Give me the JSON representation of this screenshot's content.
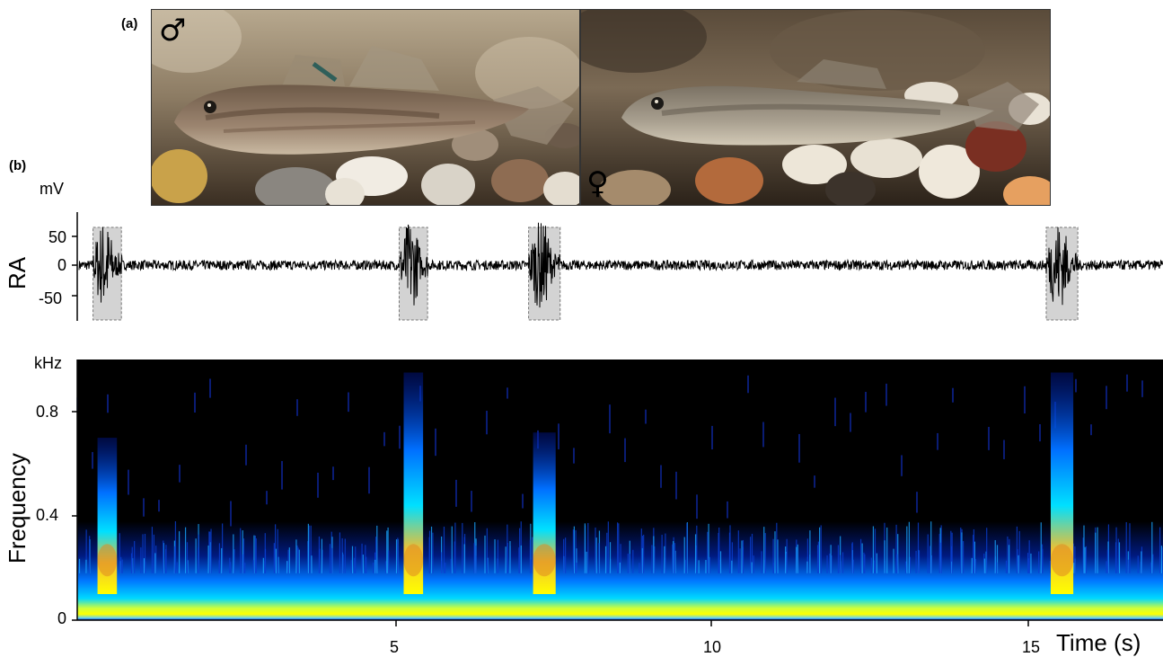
{
  "panel_a": {
    "label": "(a)",
    "male_symbol": "♂",
    "female_symbol": "♀"
  },
  "panel_b": {
    "label": "(b)",
    "ra": {
      "ylabel": "RA",
      "unit": "mV",
      "yticks": [
        "50",
        "0",
        "-50"
      ],
      "highlight_color": "#d3d3d3"
    },
    "spectrogram": {
      "ylabel": "Frequency",
      "unit": "kHz",
      "yticks": [
        "0.8",
        "0.4",
        "0"
      ],
      "xticks": [
        "5",
        "10",
        "15"
      ],
      "xlabel": "Time (s)",
      "colormap": [
        "#000000",
        "#00008b",
        "#0060ff",
        "#00d0ff",
        "#7fff7f",
        "#ffff00",
        "#ff8000",
        "#ff0000"
      ]
    }
  },
  "chart_data": [
    {
      "type": "line",
      "ylabel": "RA",
      "unit": "mV",
      "ylim": [
        -100,
        100
      ],
      "yticks": [
        50,
        0,
        -50
      ],
      "xlim": [
        0,
        17.2
      ],
      "highlighted_sound_intervals_s": [
        [
          0.25,
          0.7
        ],
        [
          5.1,
          5.55
        ],
        [
          7.15,
          7.65
        ],
        [
          15.35,
          15.85
        ]
      ]
    },
    {
      "type": "heatmap",
      "ylabel": "Frequency",
      "unit": "kHz",
      "ylim": [
        0,
        1.0
      ],
      "yticks": [
        0,
        0.4,
        0.8
      ],
      "xlim": [
        0,
        17.2
      ],
      "xticks": [
        5,
        10,
        15
      ],
      "xlabel": "Time (s)"
    }
  ]
}
